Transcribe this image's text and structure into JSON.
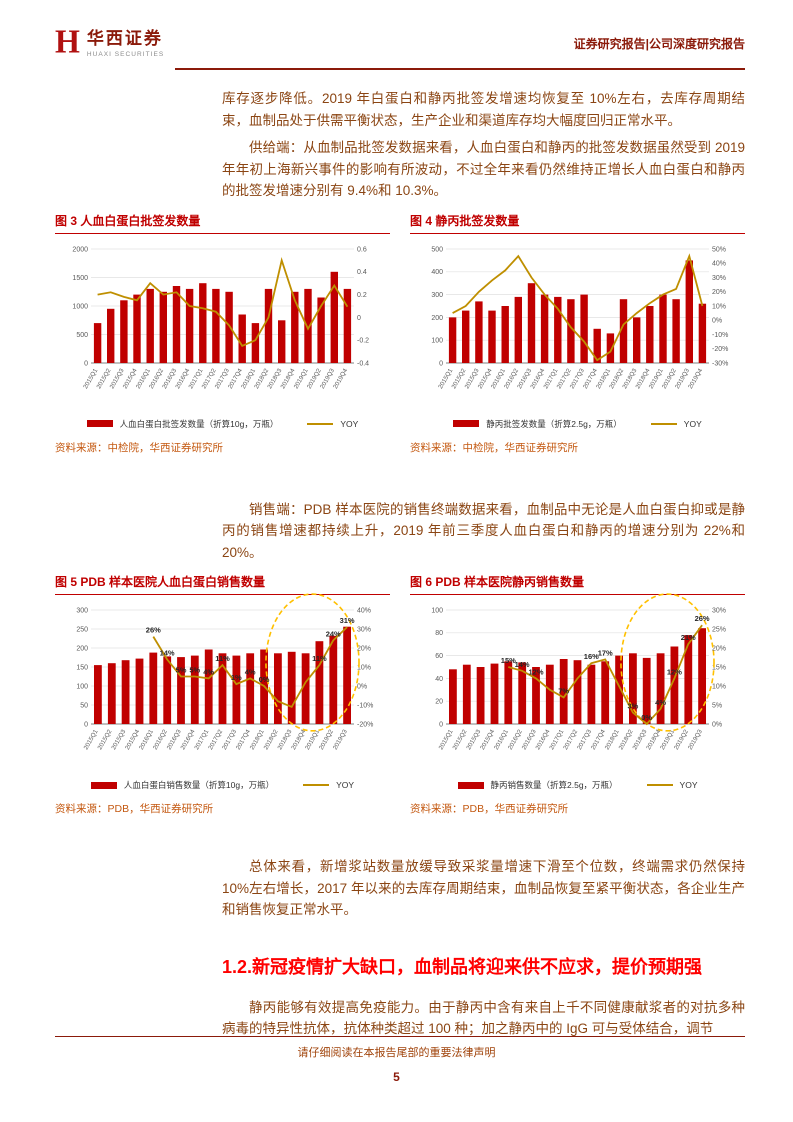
{
  "page": {
    "header": {
      "logo_h": "H",
      "logo_cn": "华西证券",
      "logo_en": "HUAXI SECURITIES",
      "right_title": "证券研究报告|公司深度研究报告"
    },
    "paragraphs": {
      "p1": "库存逐步降低。2019 年白蛋白和静丙批签发增速均恢复至 10%左右，去库存周期结束，血制品处于供需平衡状态，生产企业和渠道库存均大幅度回归正常水平。",
      "p2": "供给端：从血制品批签发数据来看，人血白蛋白和静丙的批签发数据虽然受到 2019 年年初上海新兴事件的影响有所波动，不过全年来看仍然维持正增长人血白蛋白和静丙的批签发增速分别有 9.4%和 10.3%。",
      "p3": "销售端：PDB 样本医院的销售终端数据来看，血制品中无论是人血白蛋白抑或是静丙的销售增速都持续上升，2019 年前三季度人血白蛋白和静丙的增速分别为 22%和 20%。",
      "p4": "总体来看，新增浆站数量放缓导致采浆量增速下滑至个位数，终端需求仍然保持 10%左右增长，2017 年以来的去库存周期结束，血制品恢复至紧平衡状态，各企业生产和销售恢复正常水平。",
      "heading_1_2": "1.2.新冠疫情扩大缺口，血制品将迎来供不应求，提价预期强",
      "p5": "静丙能够有效提高免疫能力。由于静丙中含有来自上千不同健康献浆者的对抗多种病毒的特异性抗体，抗体种类超过 100 种；加之静丙中的 IgG 可与受体结合，调节"
    },
    "footer": {
      "disclaimer": "请仔细阅读在本报告尾部的重要法律声明",
      "page_number": "5"
    },
    "colors": {
      "accent_red": "#C00000",
      "yoy_yellow": "#BF8F00",
      "highlight_gold": "#FFC000",
      "body_brown": "#8B4513"
    }
  },
  "chart_data": [
    {
      "id": "figure-3",
      "type": "bar",
      "title": "图 3 人血白蛋白批签发数量",
      "source": "资料来源：中检院，华西证券研究所",
      "categories": [
        "2015Q1",
        "2015Q2",
        "2015Q3",
        "2015Q4",
        "2016Q1",
        "2016Q2",
        "2016Q3",
        "2016Q4",
        "2017Q1",
        "2017Q2",
        "2017Q3",
        "2017Q4",
        "2018Q1",
        "2018Q2",
        "2018Q3",
        "2018Q4",
        "2019Q1",
        "2019Q2",
        "2019Q3",
        "2019Q4"
      ],
      "bars": {
        "name": "人血白蛋白批签发数量（折算10g，万瓶）",
        "values": [
          700,
          950,
          1100,
          1200,
          1300,
          1250,
          1350,
          1300,
          1400,
          1300,
          1250,
          850,
          700,
          1300,
          750,
          1250,
          1300,
          1150,
          1600,
          1300
        ]
      },
      "line": {
        "name": "YOY",
        "values": [
          0.2,
          0.22,
          0.18,
          0.15,
          0.3,
          0.2,
          0.22,
          0.1,
          0.08,
          0.05,
          -0.07,
          -0.25,
          -0.2,
          0.0,
          0.5,
          0.15,
          -0.1,
          0.1,
          0.28,
          0.094
        ]
      },
      "left_axis": {
        "min": 0,
        "max": 2000,
        "step": 500
      },
      "right_axis": {
        "min": -0.4,
        "max": 0.6,
        "step": 0.2,
        "percent": false
      }
    },
    {
      "id": "figure-4",
      "type": "bar",
      "title": "图 4 静丙批签发数量",
      "source": "资料来源：中检院，华西证券研究所",
      "categories": [
        "2015Q1",
        "2015Q2",
        "2015Q3",
        "2015Q4",
        "2016Q1",
        "2016Q2",
        "2016Q3",
        "2016Q4",
        "2017Q1",
        "2017Q2",
        "2017Q3",
        "2017Q4",
        "2018Q1",
        "2018Q2",
        "2018Q3",
        "2018Q4",
        "2019Q1",
        "2019Q2",
        "2019Q3",
        "2019Q4"
      ],
      "bars": {
        "name": "静丙批签发数量（折算2.5g，万瓶）",
        "values": [
          200,
          230,
          270,
          230,
          250,
          290,
          350,
          300,
          290,
          280,
          300,
          150,
          130,
          280,
          200,
          250,
          300,
          280,
          450,
          260
        ]
      },
      "line": {
        "name": "YOY",
        "values": [
          5,
          10,
          20,
          28,
          35,
          45,
          30,
          18,
          8,
          -5,
          -15,
          -28,
          -22,
          -3,
          5,
          12,
          18,
          22,
          45,
          10
        ]
      },
      "left_axis": {
        "min": 0,
        "max": 500,
        "step": 100
      },
      "right_axis": {
        "min": -30,
        "max": 50,
        "step": 10,
        "percent": true
      }
    },
    {
      "id": "figure-5",
      "type": "bar",
      "title": "图 5 PDB 样本医院人血白蛋白销售数量",
      "source": "资料来源：PDB，华西证券研究所",
      "categories": [
        "2015Q1",
        "2015Q2",
        "2015Q3",
        "2015Q4",
        "2016Q1",
        "2016Q2",
        "2016Q3",
        "2016Q4",
        "2017Q1",
        "2017Q2",
        "2017Q3",
        "2017Q4",
        "2018Q1",
        "2018Q2",
        "2018Q3",
        "2018Q4",
        "2019Q1",
        "2019Q2",
        "2019Q3"
      ],
      "bars": {
        "name": "人血白蛋白销售数量（折算10g，万瓶）",
        "values": [
          155,
          160,
          168,
          172,
          188,
          178,
          176,
          180,
          196,
          186,
          180,
          186,
          196,
          186,
          190,
          186,
          218,
          232,
          256
        ]
      },
      "line": {
        "name": "YOY",
        "values": [
          null,
          null,
          null,
          null,
          26,
          14,
          5,
          5,
          4,
          11,
          1,
          4,
          0,
          -8,
          -11,
          2,
          11,
          24,
          31
        ]
      },
      "labels": [
        null,
        null,
        null,
        null,
        "26%",
        "14%",
        "5%",
        "5%",
        "4%",
        "11%",
        "1%",
        "4%",
        "0%",
        null,
        null,
        null,
        "11%",
        "24%",
        "31%"
      ],
      "left_axis": {
        "min": 0,
        "max": 300,
        "step": 50
      },
      "right_axis": {
        "min": -20,
        "max": 40,
        "step": 10,
        "percent": true
      },
      "highlight": {
        "from": 13,
        "to": 18
      }
    },
    {
      "id": "figure-6",
      "type": "bar",
      "title": "图 6 PDB 样本医院静丙销售数量",
      "source": "资料来源：PDB，华西证券研究所",
      "categories": [
        "2015Q1",
        "2015Q2",
        "2015Q3",
        "2015Q4",
        "2016Q1",
        "2016Q2",
        "2016Q3",
        "2016Q4",
        "2017Q1",
        "2017Q2",
        "2017Q3",
        "2017Q4",
        "2018Q1",
        "2018Q2",
        "2018Q3",
        "2018Q4",
        "2019Q1",
        "2019Q2",
        "2019Q3"
      ],
      "bars": {
        "name": "静丙销售数量（折算2.5g，万瓶）",
        "values": [
          48,
          52,
          50,
          53,
          55,
          54,
          50,
          52,
          57,
          56,
          52,
          55,
          60,
          62,
          58,
          62,
          68,
          78,
          84
        ]
      },
      "line": {
        "name": "YOY",
        "values": [
          null,
          null,
          null,
          null,
          15,
          14,
          12,
          9,
          7,
          12,
          16,
          17,
          10,
          3,
          0,
          4,
          12,
          21,
          26
        ]
      },
      "labels": [
        null,
        null,
        null,
        null,
        "15%",
        "14%",
        "12%",
        null,
        "7%",
        null,
        "16%",
        "17%",
        null,
        "3%",
        "0%",
        "4%",
        "12%",
        "21%",
        "26%"
      ],
      "left_axis": {
        "min": 0,
        "max": 100,
        "step": 20
      },
      "right_axis": {
        "min": 0,
        "max": 30,
        "step": 5,
        "percent": true
      },
      "highlight": {
        "from": 13,
        "to": 18
      }
    }
  ]
}
